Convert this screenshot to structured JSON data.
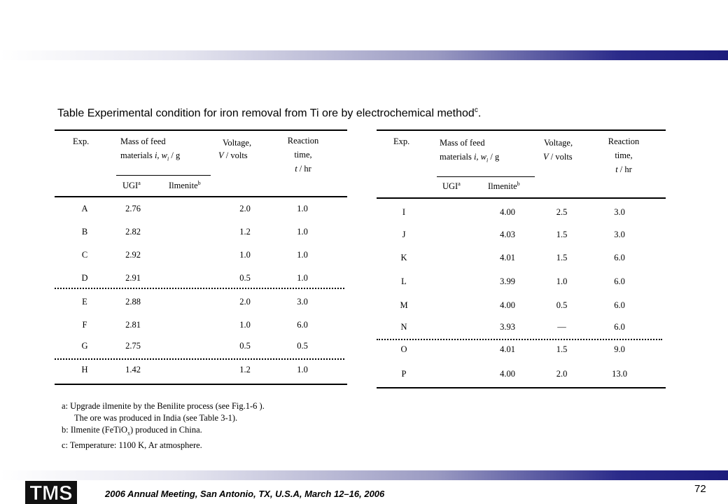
{
  "title": {
    "text": "Table  Experimental condition for iron removal from Ti ore by electrochemical method",
    "sup": "c",
    "end": "."
  },
  "headers": {
    "exp": "Exp.",
    "mass1": "Mass of feed",
    "mass2": "materials",
    "mass_var": "i, w",
    "mass_sub": "i",
    "mass_unit": " / g",
    "volt1": "Voltage,",
    "volt_var": "V",
    "volt_unit": " / volts",
    "react1": "Reaction",
    "react2": "time,",
    "react_var": "t",
    "react_unit": " / hr",
    "ugi": "UGI",
    "ugi_sup": "a",
    "ilm": "Ilmenite",
    "ilm_sup": "b"
  },
  "left_rows": [
    {
      "exp": "A",
      "mass": "2.76",
      "volt": "2.0",
      "time": "1.0"
    },
    {
      "exp": "B",
      "mass": "2.82",
      "volt": "1.2",
      "time": "1.0"
    },
    {
      "exp": "C",
      "mass": "2.92",
      "volt": "1.0",
      "time": "1.0"
    },
    {
      "exp": "D",
      "mass": "2.91",
      "volt": "0.5",
      "time": "1.0"
    },
    {
      "exp": "E",
      "mass": "2.88",
      "volt": "2.0",
      "time": "3.0"
    },
    {
      "exp": "F",
      "mass": "2.81",
      "volt": "1.0",
      "time": "6.0"
    },
    {
      "exp": "G",
      "mass": "2.75",
      "volt": "0.5",
      "time": "0.5"
    },
    {
      "exp": "H",
      "mass": "1.42",
      "volt": "1.2",
      "time": "1.0"
    }
  ],
  "right_rows": [
    {
      "exp": "I",
      "mass": "4.00",
      "volt": "2.5",
      "time": "3.0"
    },
    {
      "exp": "J",
      "mass": "4.03",
      "volt": "1.5",
      "time": "3.0"
    },
    {
      "exp": "K",
      "mass": "4.01",
      "volt": "1.5",
      "time": "6.0"
    },
    {
      "exp": "L",
      "mass": "3.99",
      "volt": "1.0",
      "time": "6.0"
    },
    {
      "exp": "M",
      "mass": "4.00",
      "volt": "0.5",
      "time": "6.0"
    },
    {
      "exp": "N",
      "mass": "3.93",
      "volt": "—",
      "time": "6.0"
    },
    {
      "exp": "O",
      "mass": "4.01",
      "volt": "1.5",
      "time": "9.0"
    },
    {
      "exp": "P",
      "mass": "4.00",
      "volt": "2.0",
      "time": "13.0"
    }
  ],
  "notes": {
    "a1": "a: Upgrade ilmenite by the Benilite process (see Fig.1-6 ).",
    "a2": "The ore was produced in India (see Table 3-1).",
    "b_pre": "b: Ilmenite (FeTiO",
    "b_sub": "x",
    "b_post": ") produced in China.",
    "c": "c: Temperature:  1100 K, Ar atmosphere."
  },
  "footer": {
    "logo_text": "TMS",
    "meeting": "2006 Annual Meeting, San Antonio, TX, U.S.A, March 12–16, 2006",
    "page": "72"
  },
  "colors": {
    "bar_dark": "#1c1c7c",
    "bar_light": "#ffffff"
  }
}
